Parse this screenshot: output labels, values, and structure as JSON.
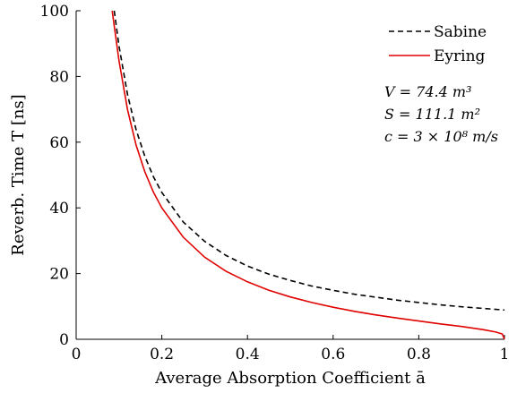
{
  "chart_data": {
    "type": "line",
    "title": "",
    "xlabel": "Average Absorption Coefficient ā",
    "ylabel": "Reverb. Time T [ns]",
    "xlim": [
      0,
      1
    ],
    "ylim": [
      0,
      100
    ],
    "xticks": [
      0,
      0.2,
      0.4,
      0.6,
      0.8,
      1
    ],
    "xtick_labels": [
      "0",
      "0.2",
      "0.4",
      "0.6",
      "0.8",
      "1"
    ],
    "yticks": [
      0,
      20,
      40,
      60,
      80,
      100
    ],
    "ytick_labels": [
      "0",
      "20",
      "40",
      "60",
      "80",
      "100"
    ],
    "grid": false,
    "legend_position": "top-right",
    "series": [
      {
        "name": "Sabine",
        "color": "#000000",
        "style": "dashed",
        "x": [
          0.089,
          0.1,
          0.12,
          0.14,
          0.16,
          0.18,
          0.2,
          0.25,
          0.3,
          0.35,
          0.4,
          0.45,
          0.5,
          0.55,
          0.6,
          0.65,
          0.7,
          0.75,
          0.8,
          0.85,
          0.9,
          0.95,
          1.0
        ],
        "y": [
          100,
          89.3,
          74.4,
          63.8,
          55.8,
          49.6,
          44.7,
          35.7,
          29.8,
          25.5,
          22.3,
          19.8,
          17.9,
          16.2,
          14.9,
          13.7,
          12.8,
          11.9,
          11.2,
          10.5,
          9.9,
          9.4,
          8.9
        ]
      },
      {
        "name": "Eyring",
        "color": "#e00000",
        "style": "solid",
        "x": [
          0.084,
          0.1,
          0.12,
          0.14,
          0.16,
          0.18,
          0.2,
          0.25,
          0.3,
          0.35,
          0.4,
          0.45,
          0.5,
          0.55,
          0.6,
          0.65,
          0.7,
          0.75,
          0.8,
          0.85,
          0.9,
          0.95,
          0.98,
          0.995,
          1.0
        ],
        "y": [
          100,
          84.8,
          69.8,
          59.1,
          51.1,
          44.9,
          40.0,
          31.1,
          25.0,
          20.7,
          17.5,
          14.9,
          12.9,
          11.2,
          9.75,
          8.5,
          7.4,
          6.45,
          5.55,
          4.7,
          3.9,
          2.95,
          2.2,
          1.6,
          0
        ]
      }
    ],
    "annotations": [
      "V = 74.4 m³",
      "S = 111.1 m²",
      "c = 3 × 10⁸ m/s"
    ]
  }
}
